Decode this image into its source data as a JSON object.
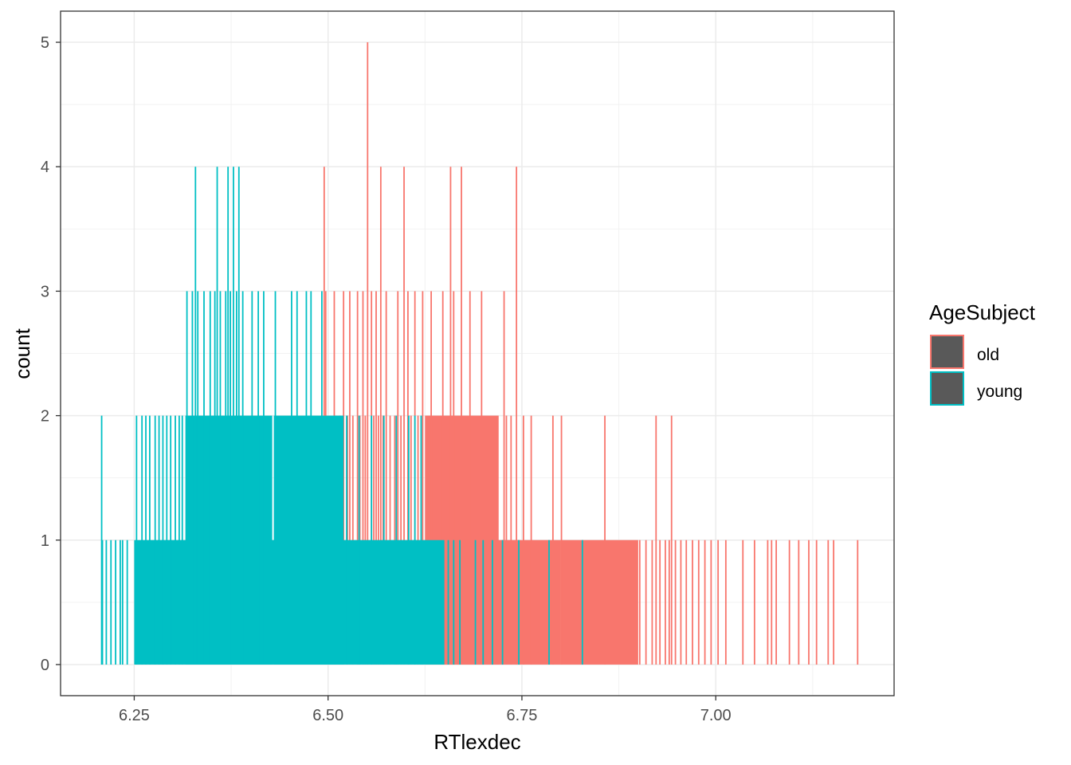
{
  "chart_data": {
    "type": "bar",
    "subtype": "histogram",
    "xlabel": "RTlexdec",
    "ylabel": "count",
    "xlim": [
      6.155,
      7.23
    ],
    "ylim": [
      -0.25,
      5.25
    ],
    "x_ticks": [
      6.25,
      6.5,
      6.75,
      7.0
    ],
    "x_tick_labels": [
      "6.25",
      "6.50",
      "6.75",
      "7.00"
    ],
    "y_ticks": [
      0,
      1,
      2,
      3,
      4,
      5
    ],
    "y_tick_labels": [
      "0",
      "1",
      "2",
      "3",
      "4",
      "5"
    ],
    "grid": true,
    "legend": {
      "title": "AgeSubject",
      "position": "right",
      "items": [
        {
          "label": "old",
          "color": "#F8766D"
        },
        {
          "label": "young",
          "color": "#00BFC4"
        }
      ]
    },
    "series": [
      {
        "name": "old",
        "color": "#F8766D",
        "runs": [
          {
            "from": 6.625,
            "to": 6.72,
            "value": 2
          },
          {
            "from": 6.65,
            "to": 6.8,
            "value": 1
          },
          {
            "from": 6.8,
            "to": 6.9,
            "value": 1
          }
        ],
        "spikes": [
          {
            "x": 6.495,
            "value": 4
          },
          {
            "x": 6.551,
            "value": 5
          },
          {
            "x": 6.568,
            "value": 4
          },
          {
            "x": 6.598,
            "value": 4
          },
          {
            "x": 6.658,
            "value": 4
          },
          {
            "x": 6.672,
            "value": 4
          },
          {
            "x": 6.743,
            "value": 4
          },
          {
            "x": 6.497,
            "value": 3
          },
          {
            "x": 6.508,
            "value": 3
          },
          {
            "x": 6.52,
            "value": 3
          },
          {
            "x": 6.528,
            "value": 3
          },
          {
            "x": 6.538,
            "value": 3
          },
          {
            "x": 6.545,
            "value": 3
          },
          {
            "x": 6.556,
            "value": 3
          },
          {
            "x": 6.562,
            "value": 3
          },
          {
            "x": 6.575,
            "value": 3
          },
          {
            "x": 6.59,
            "value": 3
          },
          {
            "x": 6.603,
            "value": 3
          },
          {
            "x": 6.612,
            "value": 3
          },
          {
            "x": 6.622,
            "value": 3
          },
          {
            "x": 6.633,
            "value": 3
          },
          {
            "x": 6.648,
            "value": 3
          },
          {
            "x": 6.662,
            "value": 3
          },
          {
            "x": 6.683,
            "value": 3
          },
          {
            "x": 6.698,
            "value": 3
          },
          {
            "x": 6.727,
            "value": 3
          },
          {
            "x": 6.5,
            "value": 2
          },
          {
            "x": 6.51,
            "value": 2
          },
          {
            "x": 6.515,
            "value": 2
          },
          {
            "x": 6.525,
            "value": 2
          },
          {
            "x": 6.532,
            "value": 2
          },
          {
            "x": 6.541,
            "value": 2
          },
          {
            "x": 6.548,
            "value": 2
          },
          {
            "x": 6.559,
            "value": 2
          },
          {
            "x": 6.565,
            "value": 2
          },
          {
            "x": 6.571,
            "value": 2
          },
          {
            "x": 6.58,
            "value": 2
          },
          {
            "x": 6.586,
            "value": 2
          },
          {
            "x": 6.594,
            "value": 2
          },
          {
            "x": 6.607,
            "value": 2
          },
          {
            "x": 6.616,
            "value": 2
          },
          {
            "x": 6.73,
            "value": 2
          },
          {
            "x": 6.736,
            "value": 2
          },
          {
            "x": 6.752,
            "value": 2
          },
          {
            "x": 6.762,
            "value": 2
          },
          {
            "x": 6.79,
            "value": 2
          },
          {
            "x": 6.801,
            "value": 2
          },
          {
            "x": 6.857,
            "value": 2
          },
          {
            "x": 6.923,
            "value": 2
          },
          {
            "x": 6.943,
            "value": 2
          },
          {
            "x": 6.902,
            "value": 1
          },
          {
            "x": 6.91,
            "value": 1
          },
          {
            "x": 6.918,
            "value": 1
          },
          {
            "x": 6.928,
            "value": 1
          },
          {
            "x": 6.935,
            "value": 1
          },
          {
            "x": 6.94,
            "value": 1
          },
          {
            "x": 6.948,
            "value": 1
          },
          {
            "x": 6.955,
            "value": 1
          },
          {
            "x": 6.962,
            "value": 1
          },
          {
            "x": 6.97,
            "value": 1
          },
          {
            "x": 6.978,
            "value": 1
          },
          {
            "x": 6.986,
            "value": 1
          },
          {
            "x": 6.994,
            "value": 1
          },
          {
            "x": 7.003,
            "value": 1
          },
          {
            "x": 7.013,
            "value": 1
          },
          {
            "x": 7.035,
            "value": 1
          },
          {
            "x": 7.05,
            "value": 1
          },
          {
            "x": 7.067,
            "value": 1
          },
          {
            "x": 7.072,
            "value": 1
          },
          {
            "x": 7.078,
            "value": 1
          },
          {
            "x": 7.095,
            "value": 1
          },
          {
            "x": 7.107,
            "value": 1
          },
          {
            "x": 7.12,
            "value": 1
          },
          {
            "x": 7.13,
            "value": 1
          },
          {
            "x": 7.145,
            "value": 1
          },
          {
            "x": 7.152,
            "value": 1
          },
          {
            "x": 7.183,
            "value": 1
          }
        ]
      },
      {
        "name": "young",
        "color": "#00BFC4",
        "runs": [
          {
            "from": 6.25,
            "to": 6.65,
            "value": 1
          },
          {
            "from": 6.316,
            "to": 6.428,
            "value": 2
          },
          {
            "from": 6.43,
            "to": 6.52,
            "value": 2
          }
        ],
        "spikes": [
          {
            "x": 6.208,
            "value": 2
          },
          {
            "x": 6.209,
            "value": 1
          },
          {
            "x": 6.214,
            "value": 1
          },
          {
            "x": 6.22,
            "value": 1
          },
          {
            "x": 6.226,
            "value": 1
          },
          {
            "x": 6.232,
            "value": 1
          },
          {
            "x": 6.235,
            "value": 1
          },
          {
            "x": 6.241,
            "value": 1
          },
          {
            "x": 6.253,
            "value": 2
          },
          {
            "x": 6.26,
            "value": 2
          },
          {
            "x": 6.265,
            "value": 2
          },
          {
            "x": 6.27,
            "value": 2
          },
          {
            "x": 6.277,
            "value": 2
          },
          {
            "x": 6.282,
            "value": 2
          },
          {
            "x": 6.287,
            "value": 2
          },
          {
            "x": 6.292,
            "value": 2
          },
          {
            "x": 6.297,
            "value": 2
          },
          {
            "x": 6.303,
            "value": 2
          },
          {
            "x": 6.308,
            "value": 2
          },
          {
            "x": 6.312,
            "value": 2
          },
          {
            "x": 6.329,
            "value": 4
          },
          {
            "x": 6.357,
            "value": 4
          },
          {
            "x": 6.371,
            "value": 4
          },
          {
            "x": 6.378,
            "value": 4
          },
          {
            "x": 6.385,
            "value": 4
          },
          {
            "x": 6.318,
            "value": 3
          },
          {
            "x": 6.325,
            "value": 3
          },
          {
            "x": 6.332,
            "value": 3
          },
          {
            "x": 6.34,
            "value": 3
          },
          {
            "x": 6.348,
            "value": 3
          },
          {
            "x": 6.354,
            "value": 3
          },
          {
            "x": 6.361,
            "value": 3
          },
          {
            "x": 6.368,
            "value": 3
          },
          {
            "x": 6.374,
            "value": 3
          },
          {
            "x": 6.382,
            "value": 3
          },
          {
            "x": 6.39,
            "value": 3
          },
          {
            "x": 6.402,
            "value": 3
          },
          {
            "x": 6.41,
            "value": 3
          },
          {
            "x": 6.417,
            "value": 3
          },
          {
            "x": 6.432,
            "value": 3
          },
          {
            "x": 6.453,
            "value": 3
          },
          {
            "x": 6.46,
            "value": 3
          },
          {
            "x": 6.472,
            "value": 3
          },
          {
            "x": 6.478,
            "value": 3
          },
          {
            "x": 6.492,
            "value": 3
          },
          {
            "x": 6.524,
            "value": 2
          },
          {
            "x": 6.54,
            "value": 2
          },
          {
            "x": 6.556,
            "value": 2
          },
          {
            "x": 6.572,
            "value": 2
          },
          {
            "x": 6.588,
            "value": 2
          },
          {
            "x": 6.604,
            "value": 2
          },
          {
            "x": 6.612,
            "value": 2
          },
          {
            "x": 6.62,
            "value": 2
          },
          {
            "x": 6.655,
            "value": 1
          },
          {
            "x": 6.662,
            "value": 1
          },
          {
            "x": 6.67,
            "value": 1
          },
          {
            "x": 6.69,
            "value": 1
          },
          {
            "x": 6.7,
            "value": 1
          },
          {
            "x": 6.712,
            "value": 1
          },
          {
            "x": 6.725,
            "value": 1
          },
          {
            "x": 6.746,
            "value": 1
          },
          {
            "x": 6.785,
            "value": 1
          },
          {
            "x": 6.828,
            "value": 1
          }
        ]
      }
    ]
  }
}
